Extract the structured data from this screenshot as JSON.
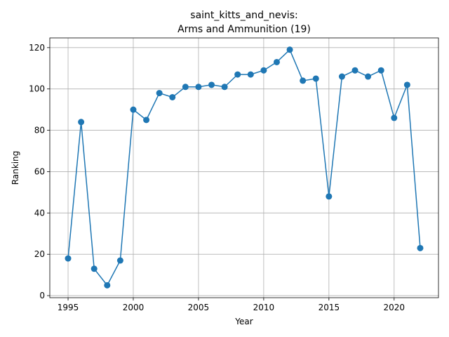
{
  "chart_data": {
    "type": "line",
    "title_line1": "saint_kitts_and_nevis:",
    "title_line2": "Arms and Ammunition (19)",
    "xlabel": "Year",
    "ylabel": "Ranking",
    "xlim": [
      1993.6,
      2023.4
    ],
    "ylim": [
      -1,
      124.7
    ],
    "xticks": [
      1995,
      2000,
      2005,
      2010,
      2015,
      2020
    ],
    "yticks": [
      0,
      20,
      40,
      60,
      80,
      100,
      120
    ],
    "grid": true,
    "color": "#1f77b4",
    "x": [
      1995,
      1996,
      1997,
      1998,
      1999,
      2000,
      2001,
      2002,
      2003,
      2004,
      2005,
      2006,
      2007,
      2008,
      2009,
      2010,
      2011,
      2012,
      2013,
      2014,
      2015,
      2016,
      2017,
      2018,
      2019,
      2020,
      2021,
      2022
    ],
    "y": [
      18,
      84,
      13,
      5,
      17,
      90,
      85,
      98,
      96,
      101,
      101,
      102,
      101,
      107,
      107,
      109,
      113,
      119,
      104,
      105,
      48,
      106,
      109,
      106,
      109,
      86,
      102,
      23
    ]
  }
}
